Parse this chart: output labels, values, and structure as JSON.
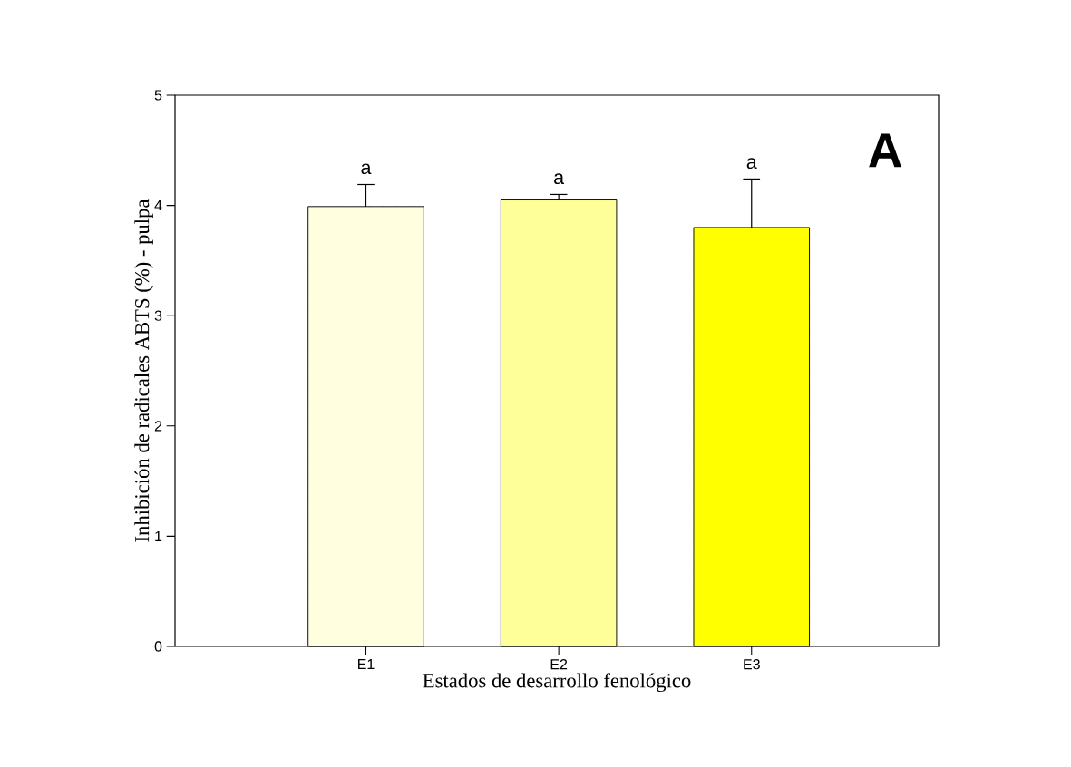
{
  "chart_data": {
    "type": "bar",
    "xlabel": "Estados de desarrollo fenológico",
    "ylabel": "Inhibición de radicales ABTS (%) - pulpa",
    "categories": [
      "E1",
      "E2",
      "E3"
    ],
    "values": [
      3.99,
      4.05,
      3.8
    ],
    "colors": [
      "#ffffe0",
      "#ffff99",
      "#ffff00"
    ],
    "errors": [
      [
        3.99,
        4.19
      ],
      [
        4.05,
        4.1
      ],
      [
        3.8,
        4.24
      ]
    ],
    "ylim": [
      0,
      5
    ],
    "yticks": [
      0,
      1,
      2,
      3,
      4,
      5
    ],
    "grid": false,
    "annotations": [
      "a",
      "a",
      "a",
      "A"
    ]
  }
}
